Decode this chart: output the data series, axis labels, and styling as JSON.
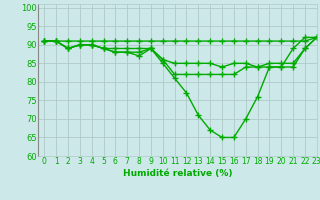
{
  "xlabel": "Humidité relative (%)",
  "xlim": [
    -0.5,
    23
  ],
  "ylim": [
    60,
    101
  ],
  "yticks": [
    60,
    65,
    70,
    75,
    80,
    85,
    90,
    95,
    100
  ],
  "xticks": [
    0,
    1,
    2,
    3,
    4,
    5,
    6,
    7,
    8,
    9,
    10,
    11,
    12,
    13,
    14,
    15,
    16,
    17,
    18,
    19,
    20,
    21,
    22,
    23
  ],
  "background_color": "#cce8e8",
  "grid_color": "#b0c8c8",
  "line_color": "#00aa00",
  "line_width": 1.0,
  "marker": "+",
  "marker_size": 4,
  "series": [
    [
      91,
      91,
      91,
      91,
      91,
      91,
      91,
      91,
      91,
      91,
      91,
      91,
      91,
      91,
      91,
      91,
      91,
      91,
      91,
      91,
      91,
      91,
      91,
      92
    ],
    [
      91,
      91,
      89,
      90,
      90,
      89,
      89,
      89,
      89,
      89,
      86,
      82,
      82,
      82,
      82,
      82,
      82,
      84,
      84,
      85,
      85,
      85,
      89,
      92
    ],
    [
      91,
      91,
      89,
      90,
      90,
      89,
      88,
      88,
      88,
      89,
      86,
      85,
      85,
      85,
      85,
      84,
      85,
      85,
      84,
      84,
      84,
      84,
      89,
      92
    ],
    [
      91,
      91,
      89,
      90,
      90,
      89,
      88,
      88,
      87,
      89,
      85,
      81,
      77,
      71,
      67,
      65,
      65,
      70,
      76,
      84,
      84,
      89,
      92,
      92
    ]
  ]
}
